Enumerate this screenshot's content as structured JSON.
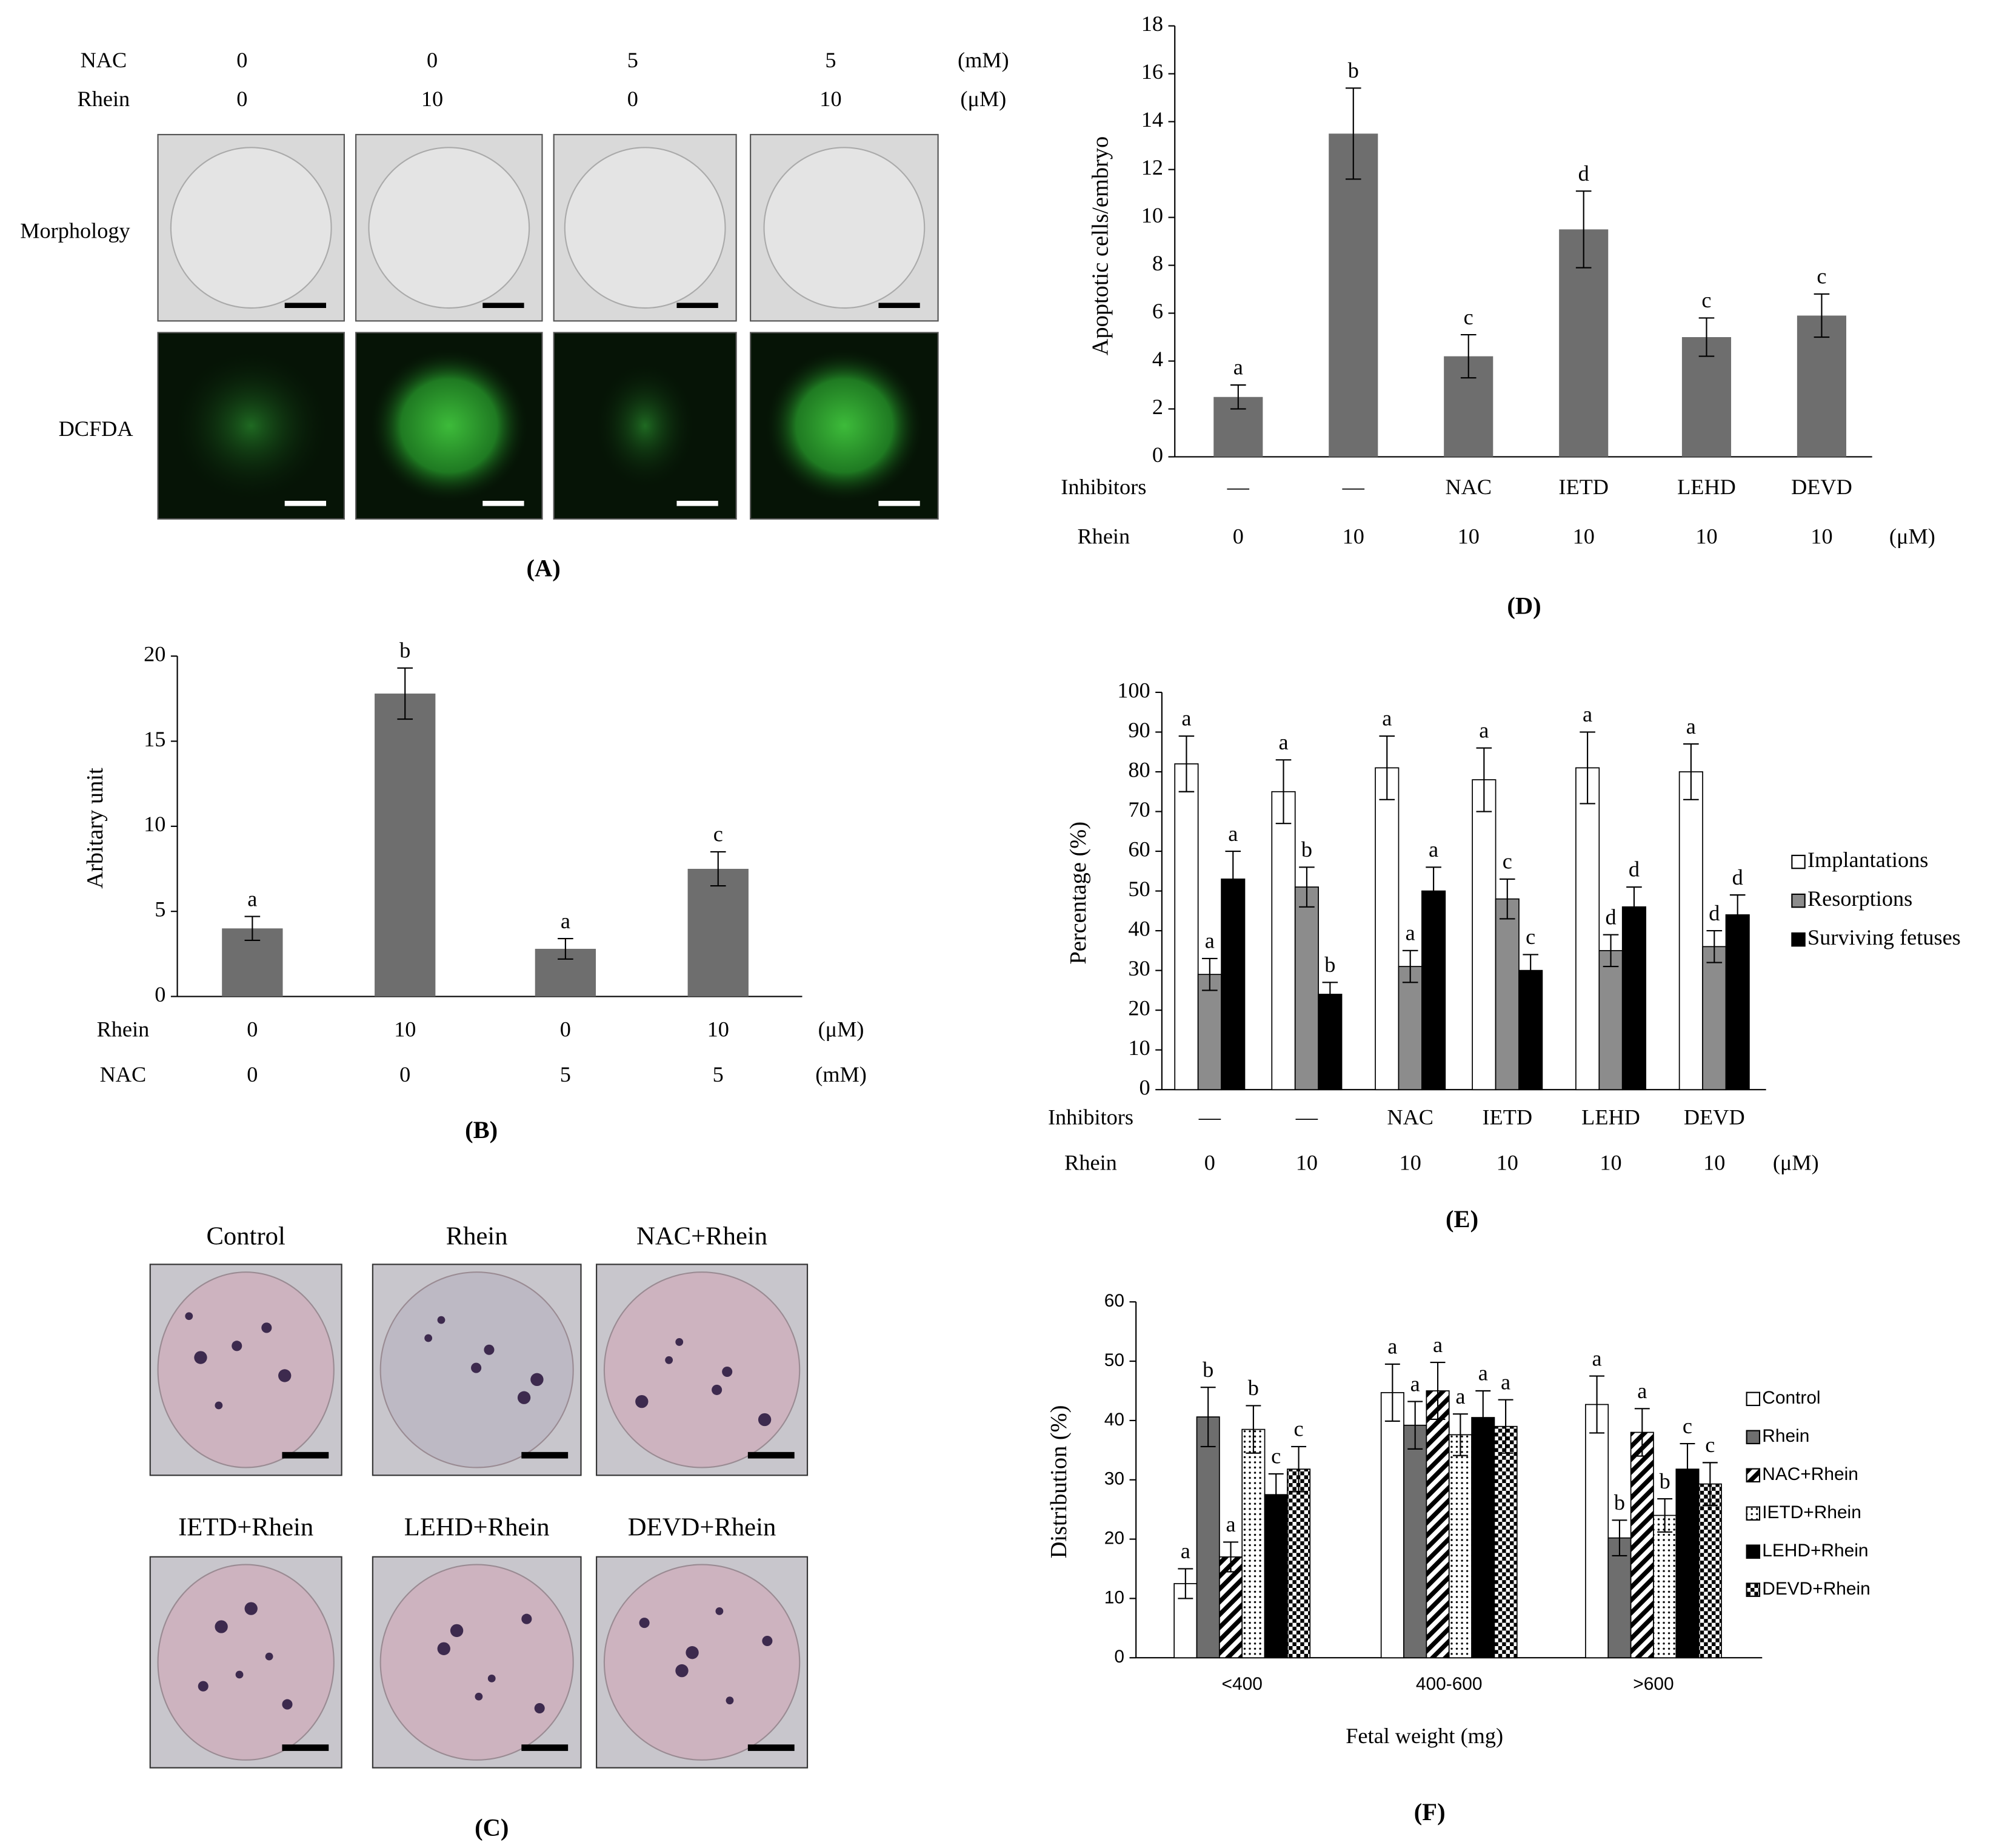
{
  "panel_a": {
    "rows": [
      {
        "name": "NAC",
        "labels": [
          "0",
          "0",
          "5",
          "5"
        ],
        "unit": "(mM)"
      },
      {
        "name": "Rhein",
        "labels": [
          "0",
          "10",
          "0",
          "10"
        ],
        "unit": "(μM)"
      }
    ],
    "image_rows": [
      "Morphology",
      "DCFDA"
    ],
    "label": "(A)"
  },
  "panel_c": {
    "titles": [
      "Control",
      "Rhein",
      "NAC+Rhein",
      "IETD+Rhein",
      "LEHD+Rhein",
      "DEVD+Rhein"
    ],
    "label": "(C)"
  },
  "chart_data": [
    {
      "type": "bar",
      "y_label": "Arbitary unit",
      "panel_label": "(B)",
      "ylim": [
        0,
        20
      ],
      "yticks": [
        0,
        5,
        10,
        15,
        20
      ],
      "color": "#6e6e6e",
      "values": [
        4.0,
        17.8,
        2.8,
        7.5
      ],
      "errors": [
        0.7,
        1.5,
        0.6,
        1.0
      ],
      "letters": [
        "a",
        "b",
        "a",
        "c"
      ],
      "rows": [
        {
          "name": "Rhein",
          "labels": [
            "0",
            "10",
            "0",
            "10"
          ],
          "unit": "(μM)"
        },
        {
          "name": "NAC",
          "labels": [
            "0",
            "0",
            "5",
            "5"
          ],
          "unit": "(mM)"
        }
      ]
    },
    {
      "type": "bar",
      "y_label": "Apoptotic cells/embryo",
      "panel_label": "(D)",
      "ylim": [
        0,
        18
      ],
      "yticks": [
        0,
        2,
        4,
        6,
        8,
        10,
        12,
        14,
        16,
        18
      ],
      "color": "#6e6e6e",
      "values": [
        2.5,
        13.5,
        4.2,
        9.5,
        5.0,
        5.9
      ],
      "errors": [
        0.5,
        1.9,
        0.9,
        1.6,
        0.8,
        0.9
      ],
      "letters": [
        "a",
        "b",
        "c",
        "d",
        "c",
        "c"
      ],
      "rows": [
        {
          "name": "Inhibitors",
          "labels": [
            "—",
            "—",
            "NAC",
            "IETD",
            "LEHD",
            "DEVD"
          ]
        },
        {
          "name": "Rhein",
          "labels": [
            "0",
            "10",
            "10",
            "10",
            "10",
            "10"
          ],
          "unit": "(μM)"
        }
      ]
    },
    {
      "type": "bar",
      "y_label": "Percentage (%)",
      "panel_label": "(E)",
      "ylim": [
        0,
        100
      ],
      "yticks": [
        0,
        10,
        20,
        30,
        40,
        50,
        60,
        70,
        80,
        90,
        100
      ],
      "legend": "right",
      "series": [
        {
          "name": "Implantations",
          "color": "#ffffff",
          "values": [
            82,
            75,
            81,
            78,
            81,
            80
          ],
          "errors": [
            7,
            8,
            8,
            8,
            9,
            7
          ],
          "letters": [
            "a",
            "a",
            "a",
            "a",
            "a",
            "a"
          ]
        },
        {
          "name": "Resorptions",
          "color": "#8c8c8c",
          "values": [
            29,
            51,
            31,
            48,
            35,
            36
          ],
          "errors": [
            4,
            5,
            4,
            5,
            4,
            4
          ],
          "letters": [
            "a",
            "b",
            "a",
            "c",
            "d",
            "d"
          ]
        },
        {
          "name": "Surviving fetuses",
          "color": "#000000",
          "values": [
            53,
            24,
            50,
            30,
            46,
            44
          ],
          "errors": [
            7,
            3,
            6,
            4,
            5,
            5
          ],
          "letters": [
            "a",
            "b",
            "a",
            "c",
            "d",
            "d"
          ]
        }
      ],
      "rows": [
        {
          "name": "Inhibitors",
          "labels": [
            "—",
            "—",
            "NAC",
            "IETD",
            "LEHD",
            "DEVD"
          ]
        },
        {
          "name": "Rhein",
          "labels": [
            "0",
            "10",
            "10",
            "10",
            "10",
            "10"
          ],
          "unit": "(μM)"
        }
      ]
    },
    {
      "type": "bar",
      "y_label": "Distribution (%)",
      "x_label": "Fetal weight (mg)",
      "panel_label": "(F)",
      "ylim": [
        0,
        60
      ],
      "yticks": [
        0,
        10,
        20,
        30,
        40,
        50,
        60
      ],
      "legend": "right",
      "categories": [
        "<400",
        "400-600",
        ">600"
      ],
      "series": [
        {
          "name": "Control",
          "color": "#ffffff",
          "values": [
            12.5,
            44.7,
            42.7
          ],
          "errors": [
            2.5,
            4.8,
            4.8
          ],
          "letters": [
            "a",
            "a",
            "a"
          ]
        },
        {
          "name": "Rhein",
          "color": "#6e6e6e",
          "values": [
            40.6,
            39.2,
            20.2
          ],
          "errors": [
            5.0,
            4.0,
            3.0
          ],
          "letters": [
            "b",
            "a",
            "b"
          ]
        },
        {
          "name": "NAC+Rhein",
          "color": "#000000",
          "pattern": "hatch",
          "values": [
            17,
            45,
            38
          ],
          "errors": [
            2.5,
            4.8,
            4.0
          ],
          "letters": [
            "a",
            "a",
            "a"
          ]
        },
        {
          "name": "IETD+Rhein",
          "color": "#000000",
          "pattern": "dots",
          "values": [
            38.5,
            37.6,
            24
          ],
          "errors": [
            4.0,
            3.5,
            2.8
          ],
          "letters": [
            "b",
            "a",
            "b"
          ]
        },
        {
          "name": "LEHD+Rhein",
          "color": "#000000",
          "values": [
            27.5,
            40.5,
            31.8
          ],
          "errors": [
            3.5,
            4.5,
            4.3
          ],
          "letters": [
            "c",
            "a",
            "c"
          ]
        },
        {
          "name": "DEVD+Rhein",
          "color": "#000000",
          "pattern": "checker",
          "values": [
            31.8,
            39,
            29.3
          ],
          "errors": [
            3.8,
            4.5,
            3.6
          ],
          "letters": [
            "c",
            "a",
            "c"
          ]
        }
      ]
    }
  ]
}
